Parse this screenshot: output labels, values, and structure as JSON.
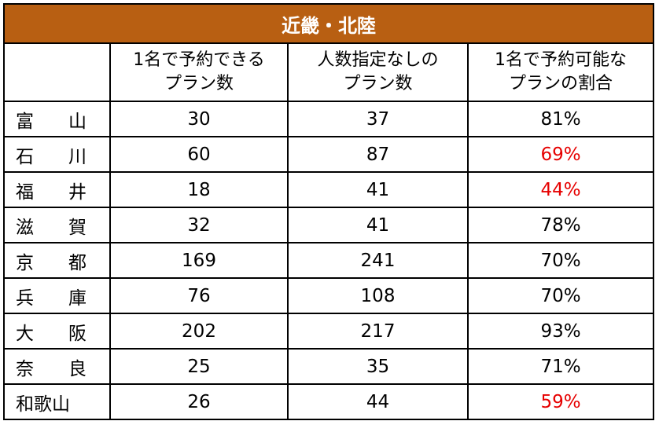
{
  "title": "近畿・北陸",
  "headers": {
    "blank": "",
    "col1_line1": "1名で予約できる",
    "col1_line2": "プラン数",
    "col2_line1": "人数指定なしの",
    "col2_line2": "プラン数",
    "col3_line1": "1名で予約可能な",
    "col3_line2": "プランの割合"
  },
  "highlight_color": "#e60000",
  "title_bg_color": "#b85f12",
  "rows": [
    {
      "c1": "富",
      "c2": "山",
      "single": "30",
      "unspecified": "37",
      "ratio": "81%",
      "highlight": false
    },
    {
      "c1": "石",
      "c2": "川",
      "single": "60",
      "unspecified": "87",
      "ratio": "69%",
      "highlight": true
    },
    {
      "c1": "福",
      "c2": "井",
      "single": "18",
      "unspecified": "41",
      "ratio": "44%",
      "highlight": true
    },
    {
      "c1": "滋",
      "c2": "賀",
      "single": "32",
      "unspecified": "41",
      "ratio": "78%",
      "highlight": false
    },
    {
      "c1": "京",
      "c2": "都",
      "single": "169",
      "unspecified": "241",
      "ratio": "70%",
      "highlight": false
    },
    {
      "c1": "兵",
      "c2": "庫",
      "single": "76",
      "unspecified": "108",
      "ratio": "70%",
      "highlight": false
    },
    {
      "c1": "大",
      "c2": "阪",
      "single": "202",
      "unspecified": "217",
      "ratio": "93%",
      "highlight": false
    },
    {
      "c1": "奈",
      "c2": "良",
      "single": "25",
      "unspecified": "35",
      "ratio": "71%",
      "highlight": false
    },
    {
      "c1": "和歌山",
      "c2": "",
      "single": "26",
      "unspecified": "44",
      "ratio": "59%",
      "highlight": true
    }
  ]
}
